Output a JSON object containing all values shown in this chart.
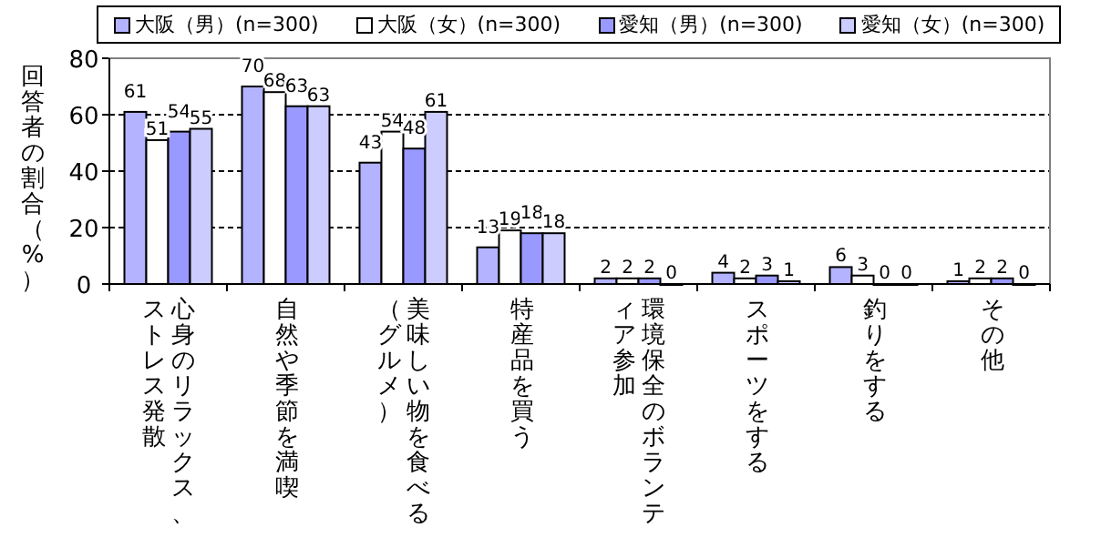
{
  "chart_data": {
    "type": "bar",
    "ylabel": "回答者の割合（%）",
    "categories": [
      "心身のリラックス、ストレス発散",
      "自然や季節を満喫",
      "美味しい物を食べる（グルメ）",
      "特産品を買う",
      "環境保全のボランティア参加",
      "スポーツをする",
      "釣りをする",
      "その他"
    ],
    "series": [
      {
        "name": "大阪（男）(n=300)",
        "color": "#b3b3ff",
        "values": [
          61,
          70,
          43,
          13,
          2,
          4,
          6,
          1
        ]
      },
      {
        "name": "大阪（女）(n=300)",
        "color": "#ffffff",
        "values": [
          51,
          68,
          54,
          19,
          2,
          2,
          3,
          2
        ]
      },
      {
        "name": "愛知（男）(n=300)",
        "color": "#9999ff",
        "values": [
          54,
          63,
          48,
          18,
          2,
          3,
          0,
          2
        ]
      },
      {
        "name": "愛知（女）(n=300)",
        "color": "#ccccff",
        "values": [
          55,
          63,
          61,
          18,
          0,
          1,
          0,
          0
        ]
      }
    ],
    "ylim": [
      0,
      80
    ],
    "yticks": [
      0,
      20,
      40,
      60,
      80
    ],
    "grid": "y",
    "legend": "top",
    "data_labels": true
  }
}
